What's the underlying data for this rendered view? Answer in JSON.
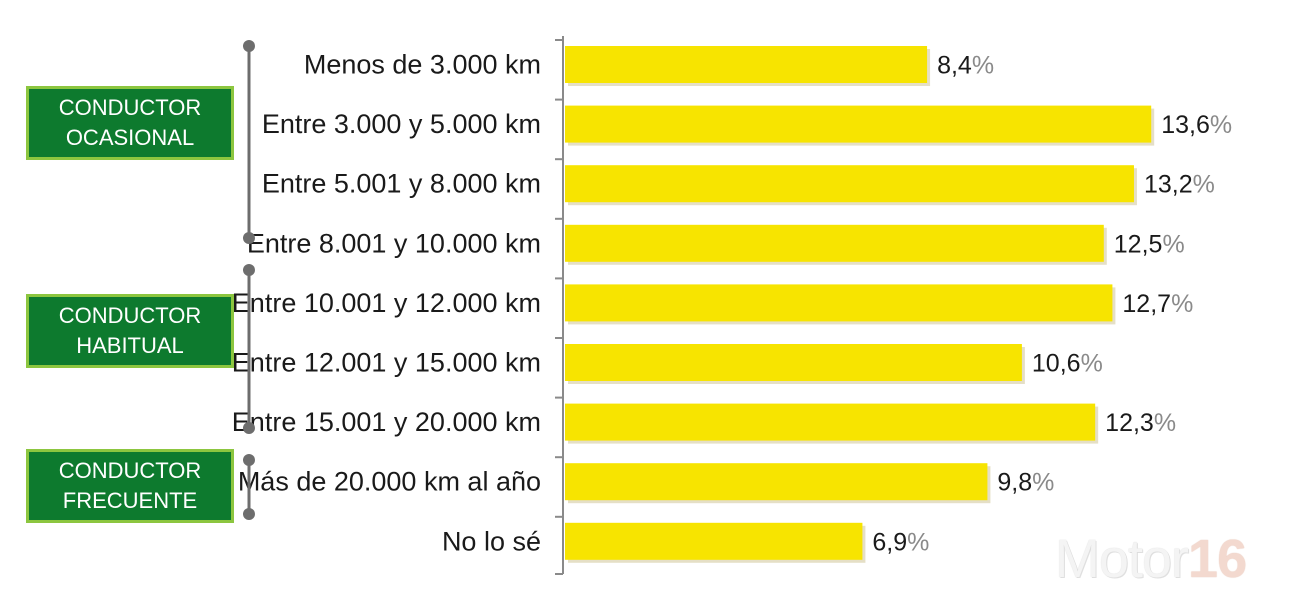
{
  "chart_data": {
    "type": "bar",
    "orientation": "horizontal",
    "categories": [
      "Menos de 3.000 km",
      "Entre 3.000 y 5.000 km",
      "Entre 5.001 y 8.000 km",
      "Entre 8.001 y 10.000 km",
      "Entre 10.001 y 12.000 km",
      "Entre 12.001 y 15.000 km",
      "Entre 15.001 y 20.000 km",
      "Más de 20.000 km al año",
      "No lo sé"
    ],
    "values": [
      8.4,
      13.6,
      13.2,
      12.5,
      12.7,
      10.6,
      12.3,
      9.8,
      6.9
    ],
    "value_labels": [
      "8,4",
      "13,6",
      "13,2",
      "12,5",
      "12,7",
      "10,6",
      "12,3",
      "9,8",
      "6,9"
    ],
    "unit_suffix": "%",
    "bar_color": "#f7e400",
    "xlim": [
      0,
      14.5
    ]
  },
  "groups": [
    {
      "lines": [
        "CONDUCTOR",
        "OCASIONAL"
      ],
      "rows": [
        0,
        3
      ]
    },
    {
      "lines": [
        "CONDUCTOR",
        "HABITUAL"
      ],
      "rows": [
        4,
        6
      ]
    },
    {
      "lines": [
        "CONDUCTOR",
        "FRECUENTE"
      ],
      "rows": [
        7,
        8
      ]
    }
  ],
  "group_colors": {
    "fill": "#0d7a2e",
    "border": "#8cc63f",
    "bracket": "#6d6d6d"
  },
  "watermark": {
    "text": "Motor",
    "number": "16"
  }
}
